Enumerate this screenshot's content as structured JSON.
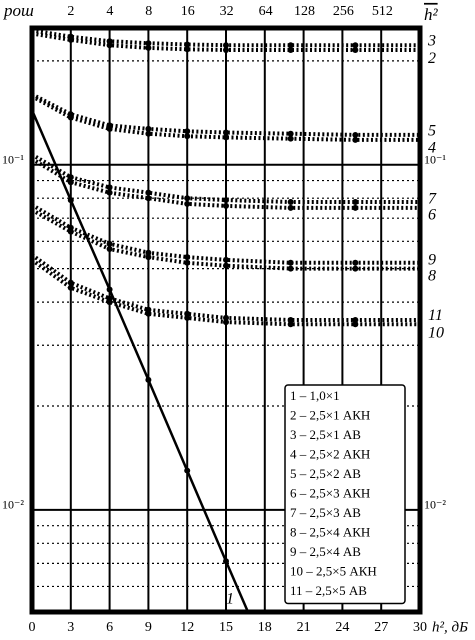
{
  "chart_data": {
    "type": "line",
    "y_label": "pош",
    "x_label": "h², дБ",
    "x2_label": "h²",
    "xlim": [
      0,
      30
    ],
    "xticks": [
      0,
      3,
      6,
      9,
      12,
      15,
      18,
      21,
      24,
      27,
      30
    ],
    "x2ticks": [
      {
        "value": 3.01,
        "label": "2"
      },
      {
        "value": 6.02,
        "label": "4"
      },
      {
        "value": 9.03,
        "label": "8"
      },
      {
        "value": 12.04,
        "label": "16"
      },
      {
        "value": 15.05,
        "label": "32"
      },
      {
        "value": 18.06,
        "label": "64"
      },
      {
        "value": 21.07,
        "label": "128"
      },
      {
        "value": 24.08,
        "label": "256"
      },
      {
        "value": 27.09,
        "label": "512"
      }
    ],
    "ylim": [
      0.00506,
      0.249
    ],
    "log_y": true,
    "yticks": [
      {
        "value": 0.1,
        "label": "10⁻¹"
      },
      {
        "value": 0.01,
        "label": "10⁻²"
      }
    ],
    "ygrid_minor": [
      0.006,
      0.007,
      0.008,
      0.009,
      0.02,
      0.03,
      0.04,
      0.05,
      0.06,
      0.07,
      0.08,
      0.09,
      0.2
    ],
    "series": [
      {
        "name": "1 – 1,0×1",
        "label": "1",
        "color": "#000",
        "style": "solid",
        "x": [
          0,
          3,
          6,
          9,
          12,
          15,
          16.7
        ],
        "values": [
          0.144,
          0.079,
          0.0435,
          0.0238,
          0.013,
          0.0071,
          0.00506
        ]
      },
      {
        "name": "2 – 2,5×1 АКН",
        "label": "2",
        "color": "#000",
        "style": "dotted",
        "x": [
          0,
          3,
          6,
          9,
          12,
          15,
          20,
          25,
          30
        ],
        "values": [
          0.245,
          0.235,
          0.228,
          0.225,
          0.223,
          0.222,
          0.222,
          0.222,
          0.222
        ]
      },
      {
        "name": "3 – 2,5×1 АВ",
        "label": "3",
        "color": "#000",
        "style": "dotted",
        "x": [
          0,
          3,
          6,
          9,
          12,
          15,
          20,
          25,
          30
        ],
        "values": [
          0.24,
          0.23,
          0.222,
          0.218,
          0.216,
          0.215,
          0.215,
          0.215,
          0.215
        ]
      },
      {
        "name": "4 – 2,5×2 АКН",
        "label": "4",
        "color": "#000",
        "style": "dotted",
        "x": [
          0,
          3,
          6,
          9,
          12,
          15,
          20,
          25,
          30
        ],
        "values": [
          0.16,
          0.14,
          0.13,
          0.127,
          0.125,
          0.124,
          0.123,
          0.122,
          0.122
        ]
      },
      {
        "name": "5 – 2,5×2 АВ",
        "label": "5",
        "color": "#000",
        "style": "dotted",
        "x": [
          0,
          3,
          6,
          9,
          12,
          15,
          20,
          25,
          30
        ],
        "values": [
          0.158,
          0.137,
          0.127,
          0.123,
          0.121,
          0.12,
          0.119,
          0.118,
          0.118
        ]
      },
      {
        "name": "6 – 2,5×3 АКН",
        "label": "6",
        "color": "#000",
        "style": "dotted",
        "x": [
          0,
          3,
          6,
          9,
          12,
          15,
          20,
          25,
          30
        ],
        "values": [
          0.107,
          0.092,
          0.086,
          0.083,
          0.08,
          0.079,
          0.078,
          0.078,
          0.078
        ]
      },
      {
        "name": "7 – 2,5×3 АВ",
        "label": "7",
        "color": "#000",
        "style": "dotted",
        "x": [
          0,
          3,
          6,
          9,
          12,
          15,
          20,
          25,
          30
        ],
        "values": [
          0.104,
          0.089,
          0.083,
          0.08,
          0.077,
          0.076,
          0.075,
          0.075,
          0.075
        ]
      },
      {
        "name": "8 – 2,5×4 АКН",
        "label": "8",
        "color": "#000",
        "style": "dotted",
        "x": [
          0,
          3,
          6,
          9,
          12,
          15,
          20,
          25,
          30
        ],
        "values": [
          0.0765,
          0.0657,
          0.059,
          0.0556,
          0.054,
          0.053,
          0.052,
          0.052,
          0.052
        ]
      },
      {
        "name": "9 – 2,5×4 АВ",
        "label": "9",
        "color": "#000",
        "style": "dotted",
        "x": [
          0,
          3,
          6,
          9,
          12,
          15,
          20,
          25,
          30
        ],
        "values": [
          0.074,
          0.064,
          0.057,
          0.054,
          0.052,
          0.051,
          0.05,
          0.05,
          0.05
        ]
      },
      {
        "name": "10 – 2,5×5 АКН",
        "label": "10",
        "color": "#000",
        "style": "dotted",
        "x": [
          0,
          3,
          6,
          9,
          12,
          15,
          20,
          25,
          30
        ],
        "values": [
          0.0548,
          0.0455,
          0.041,
          0.038,
          0.037,
          0.036,
          0.0355,
          0.0355,
          0.0355
        ]
      },
      {
        "name": "11 – 2,5×5 АВ",
        "label": "11",
        "color": "#000",
        "style": "dotted",
        "x": [
          0,
          3,
          6,
          9,
          12,
          15,
          20,
          25,
          30
        ],
        "values": [
          0.053,
          0.044,
          0.04,
          0.037,
          0.036,
          0.035,
          0.0345,
          0.0345,
          0.0345
        ]
      }
    ]
  }
}
